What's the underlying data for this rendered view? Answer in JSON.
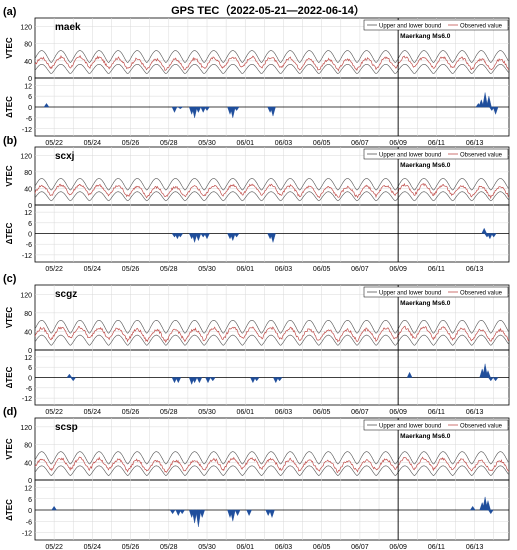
{
  "title": "GPS TEC（2022-05-21—2022-06-14）",
  "colors": {
    "bound": "#555555",
    "observed": "#c0504d",
    "anomaly": "#1f4e9c",
    "event": "#000000",
    "grid": "#d9d9d9"
  },
  "legend": {
    "bound": "Upper and lower bound",
    "observed": "Observed value"
  },
  "event_label": "Maerkang Ms6.0",
  "chart_data": [
    {
      "type": "line",
      "panel_label": "(a)",
      "station": "maek",
      "ylabel_top": "VTEC",
      "ylabel_bottom": "ΔTEC",
      "vtec_ticks": [
        "0",
        "40",
        "80",
        "120"
      ],
      "dtec_ticks": [
        "12",
        "6",
        "0",
        "-6",
        "-12"
      ],
      "show_dates": true,
      "ylim_vtec": [
        0,
        140
      ],
      "ylim_dtec": [
        -16,
        16
      ],
      "anomalies": [
        [
          0.6,
          2
        ],
        [
          7.3,
          -3
        ],
        [
          7.6,
          -1
        ],
        [
          8.2,
          -4
        ],
        [
          8.35,
          -6
        ],
        [
          8.55,
          -3
        ],
        [
          8.8,
          -3
        ],
        [
          9.0,
          -2
        ],
        [
          10.2,
          -4
        ],
        [
          10.35,
          -6
        ],
        [
          10.55,
          -2
        ],
        [
          12.3,
          -3
        ],
        [
          12.45,
          -5
        ],
        [
          23.2,
          2
        ],
        [
          23.35,
          4
        ],
        [
          23.55,
          8
        ],
        [
          23.75,
          6
        ],
        [
          23.9,
          -2
        ],
        [
          24.1,
          -4
        ]
      ]
    },
    {
      "type": "line",
      "panel_label": "(b)",
      "station": "scxj",
      "ylabel_top": "VTEC",
      "ylabel_bottom": "ΔTEC",
      "vtec_ticks": [
        "0",
        "40",
        "80",
        "120"
      ],
      "dtec_ticks": [
        "12",
        "6",
        "0",
        "-6",
        "-12"
      ],
      "show_dates": true,
      "ylim_vtec": [
        0,
        140
      ],
      "ylim_dtec": [
        -16,
        16
      ],
      "anomalies": [
        [
          7.3,
          -2
        ],
        [
          7.45,
          -3
        ],
        [
          7.6,
          -2
        ],
        [
          8.2,
          -3
        ],
        [
          8.35,
          -5
        ],
        [
          8.55,
          -4
        ],
        [
          8.8,
          -2
        ],
        [
          9.0,
          -3
        ],
        [
          10.2,
          -3
        ],
        [
          10.35,
          -4
        ],
        [
          10.55,
          -2
        ],
        [
          12.3,
          -3
        ],
        [
          12.45,
          -5
        ],
        [
          23.5,
          3
        ],
        [
          23.65,
          -2
        ],
        [
          23.8,
          -3
        ],
        [
          24.0,
          -2
        ]
      ]
    },
    {
      "type": "line",
      "panel_label": "(c)",
      "station": "scgz",
      "ylabel_top": "VTEC",
      "ylabel_bottom": "ΔTEC",
      "vtec_ticks": [
        "0",
        "40",
        "80",
        "120"
      ],
      "dtec_ticks": [
        "12",
        "6",
        "0",
        "-6",
        "-12"
      ],
      "show_dates": true,
      "ylim_vtec": [
        0,
        140
      ],
      "ylim_dtec": [
        -16,
        16
      ],
      "anomalies": [
        [
          1.8,
          2
        ],
        [
          2.0,
          -2
        ],
        [
          7.3,
          -3
        ],
        [
          7.5,
          -3
        ],
        [
          8.2,
          -4
        ],
        [
          8.35,
          -3
        ],
        [
          8.6,
          -3
        ],
        [
          9.05,
          -3
        ],
        [
          9.3,
          -2
        ],
        [
          11.4,
          -3
        ],
        [
          11.6,
          -2
        ],
        [
          12.6,
          -3
        ],
        [
          12.8,
          -2
        ],
        [
          19.6,
          3
        ],
        [
          23.4,
          5
        ],
        [
          23.55,
          8
        ],
        [
          23.7,
          4
        ],
        [
          23.85,
          -2
        ],
        [
          24.1,
          -2
        ]
      ]
    },
    {
      "type": "line",
      "panel_label": "(d)",
      "station": "scsp",
      "ylabel_top": "VTEC",
      "ylabel_bottom": "ΔTEC",
      "vtec_ticks": [
        "0",
        "40",
        "80",
        "120"
      ],
      "dtec_ticks": [
        "12",
        "6",
        "0",
        "-6",
        "-12"
      ],
      "show_dates": true,
      "ylim_vtec": [
        0,
        140
      ],
      "ylim_dtec": [
        -16,
        16
      ],
      "anomalies": [
        [
          1.0,
          2
        ],
        [
          7.2,
          -2
        ],
        [
          7.5,
          -3
        ],
        [
          7.7,
          -2
        ],
        [
          8.2,
          -4
        ],
        [
          8.35,
          -7
        ],
        [
          8.55,
          -9
        ],
        [
          8.75,
          -4
        ],
        [
          10.2,
          -4
        ],
        [
          10.35,
          -6
        ],
        [
          10.6,
          -3
        ],
        [
          11.2,
          -3
        ],
        [
          12.2,
          -3
        ],
        [
          12.4,
          -4
        ],
        [
          22.9,
          2
        ],
        [
          23.4,
          4
        ],
        [
          23.55,
          7
        ],
        [
          23.7,
          5
        ],
        [
          23.85,
          -2
        ]
      ]
    }
  ],
  "date_ticks": [
    "05/22",
    "05/24",
    "05/26",
    "05/28",
    "05/30",
    "06/01",
    "06/03",
    "06/05",
    "06/07",
    "06/09",
    "06/11",
    "06/13"
  ]
}
